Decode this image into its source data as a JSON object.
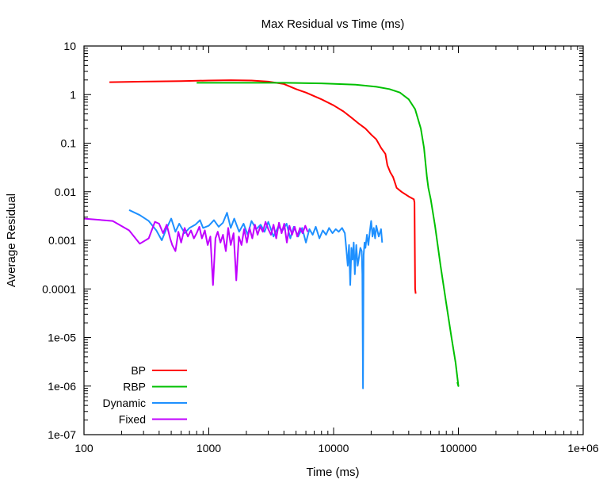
{
  "chart_data": {
    "type": "line",
    "title": "Max Residual vs Time (ms)",
    "xlabel": "Time (ms)",
    "ylabel": "Average Residual",
    "x_scale": "log",
    "y_scale": "log",
    "xlim": [
      100,
      1000000
    ],
    "ylim": [
      1e-07,
      10
    ],
    "x_ticks": [
      100,
      1000,
      10000,
      100000,
      1000000
    ],
    "x_tick_labels": [
      "100",
      "1000",
      "10000",
      "100000",
      "1e+06"
    ],
    "y_ticks": [
      1e-07,
      1e-06,
      1e-05,
      0.0001,
      0.001,
      0.01,
      0.1,
      1,
      10
    ],
    "y_tick_labels": [
      "1e-07",
      "1e-06",
      "1e-05",
      "0.0001",
      "0.001",
      "0.01",
      "0.1",
      "1",
      "10"
    ],
    "grid": false,
    "legend_position": "bottom-left",
    "series": [
      {
        "name": "BP",
        "color": "#ff0000",
        "points": [
          [
            160,
            1.8
          ],
          [
            300,
            1.85
          ],
          [
            600,
            1.9
          ],
          [
            1000,
            1.95
          ],
          [
            1500,
            1.98
          ],
          [
            2200,
            1.95
          ],
          [
            3000,
            1.85
          ],
          [
            4000,
            1.65
          ],
          [
            5000,
            1.3
          ],
          [
            6000,
            1.1
          ],
          [
            8000,
            0.8
          ],
          [
            10000,
            0.6
          ],
          [
            12000,
            0.45
          ],
          [
            14000,
            0.33
          ],
          [
            16000,
            0.25
          ],
          [
            18000,
            0.2
          ],
          [
            20000,
            0.15
          ],
          [
            22000,
            0.12
          ],
          [
            24000,
            0.08
          ],
          [
            26000,
            0.06
          ],
          [
            27000,
            0.035
          ],
          [
            28500,
            0.025
          ],
          [
            30000,
            0.02
          ],
          [
            32000,
            0.012
          ],
          [
            35000,
            0.01
          ],
          [
            40000,
            0.008
          ],
          [
            44000,
            0.007
          ],
          [
            44500,
            0.006
          ],
          [
            45000,
            0.0001
          ],
          [
            45500,
            8e-05
          ]
        ]
      },
      {
        "name": "RBP",
        "color": "#00c000",
        "points": [
          [
            800,
            1.75
          ],
          [
            2000,
            1.75
          ],
          [
            4000,
            1.75
          ],
          [
            8000,
            1.7
          ],
          [
            15000,
            1.6
          ],
          [
            22000,
            1.45
          ],
          [
            28000,
            1.3
          ],
          [
            34000,
            1.1
          ],
          [
            40000,
            0.8
          ],
          [
            45000,
            0.5
          ],
          [
            50000,
            0.2
          ],
          [
            53000,
            0.08
          ],
          [
            56000,
            0.02
          ],
          [
            57500,
            0.012
          ],
          [
            60000,
            0.007
          ],
          [
            65000,
            0.002
          ],
          [
            72000,
            0.0003
          ],
          [
            80000,
            5e-05
          ],
          [
            88000,
            1e-05
          ],
          [
            95000,
            3e-06
          ],
          [
            100000,
            1e-06
          ],
          [
            98000,
            1.2e-06
          ]
        ]
      },
      {
        "name": "Dynamic",
        "color": "#1e90ff",
        "points": [
          [
            230,
            0.0042
          ],
          [
            280,
            0.0033
          ],
          [
            330,
            0.0025
          ],
          [
            380,
            0.0016
          ],
          [
            420,
            0.001
          ],
          [
            460,
            0.0018
          ],
          [
            500,
            0.0028
          ],
          [
            540,
            0.0015
          ],
          [
            580,
            0.0022
          ],
          [
            640,
            0.0014
          ],
          [
            700,
            0.0018
          ],
          [
            780,
            0.0021
          ],
          [
            850,
            0.0026
          ],
          [
            900,
            0.0018
          ],
          [
            1000,
            0.002
          ],
          [
            1100,
            0.0026
          ],
          [
            1200,
            0.0019
          ],
          [
            1300,
            0.0023
          ],
          [
            1400,
            0.0037
          ],
          [
            1500,
            0.0018
          ],
          [
            1600,
            0.0028
          ],
          [
            1750,
            0.0015
          ],
          [
            1900,
            0.0022
          ],
          [
            2050,
            0.0013
          ],
          [
            2200,
            0.0025
          ],
          [
            2400,
            0.0017
          ],
          [
            2600,
            0.0021
          ],
          [
            2800,
            0.0015
          ],
          [
            3000,
            0.0024
          ],
          [
            3300,
            0.0012
          ],
          [
            3600,
            0.0019
          ],
          [
            3900,
            0.0016
          ],
          [
            4200,
            0.0022
          ],
          [
            4500,
            0.0011
          ],
          [
            4800,
            0.0019
          ],
          [
            5200,
            0.0012
          ],
          [
            5600,
            0.0018
          ],
          [
            6000,
            0.0009
          ],
          [
            6400,
            0.0017
          ],
          [
            6800,
            0.0013
          ],
          [
            7200,
            0.0019
          ],
          [
            7700,
            0.0011
          ],
          [
            8200,
            0.0016
          ],
          [
            8700,
            0.0013
          ],
          [
            9200,
            0.0018
          ],
          [
            9800,
            0.0014
          ],
          [
            10400,
            0.0017
          ],
          [
            11000,
            0.0015
          ],
          [
            11700,
            0.0018
          ],
          [
            12300,
            0.0014
          ],
          [
            12700,
            0.0006
          ],
          [
            13000,
            0.0003
          ],
          [
            13300,
            0.0008
          ],
          [
            13600,
            0.00012
          ],
          [
            13900,
            0.0007
          ],
          [
            14200,
            0.0004
          ],
          [
            14500,
            0.0009
          ],
          [
            14800,
            0.0002
          ],
          [
            15200,
            0.0008
          ],
          [
            15600,
            0.0003
          ],
          [
            16000,
            0.00045
          ],
          [
            16400,
            0.0007
          ],
          [
            16800,
            0.0006
          ],
          [
            17000,
            0.0002
          ],
          [
            17200,
            9e-07
          ],
          [
            17400,
            0.0005
          ],
          [
            17700,
            0.0009
          ],
          [
            18000,
            0.0007
          ],
          [
            18500,
            0.0013
          ],
          [
            19000,
            0.0008
          ],
          [
            19500,
            0.0015
          ],
          [
            20000,
            0.0025
          ],
          [
            20500,
            0.0012
          ],
          [
            21000,
            0.0018
          ],
          [
            21500,
            0.0011
          ],
          [
            22000,
            0.002
          ],
          [
            23000,
            0.0012
          ],
          [
            24000,
            0.0017
          ],
          [
            24500,
            0.0009
          ]
        ]
      },
      {
        "name": "Fixed",
        "color": "#c000ff",
        "points": [
          [
            100,
            0.0028
          ],
          [
            170,
            0.0025
          ],
          [
            230,
            0.0016
          ],
          [
            280,
            0.00085
          ],
          [
            330,
            0.0011
          ],
          [
            370,
            0.0024
          ],
          [
            400,
            0.0022
          ],
          [
            430,
            0.0014
          ],
          [
            460,
            0.0021
          ],
          [
            490,
            0.0011
          ],
          [
            510,
            0.0008
          ],
          [
            540,
            0.0006
          ],
          [
            570,
            0.0015
          ],
          [
            600,
            0.0009
          ],
          [
            640,
            0.0018
          ],
          [
            680,
            0.0012
          ],
          [
            720,
            0.0016
          ],
          [
            760,
            0.0011
          ],
          [
            800,
            0.0014
          ],
          [
            840,
            0.0019
          ],
          [
            880,
            0.0011
          ],
          [
            930,
            0.0016
          ],
          [
            980,
            0.0008
          ],
          [
            1030,
            0.0012
          ],
          [
            1080,
            0.00012
          ],
          [
            1130,
            0.0011
          ],
          [
            1180,
            0.0015
          ],
          [
            1240,
            0.0009
          ],
          [
            1300,
            0.0013
          ],
          [
            1370,
            0.0006
          ],
          [
            1430,
            0.0018
          ],
          [
            1500,
            0.0008
          ],
          [
            1580,
            0.0014
          ],
          [
            1660,
            0.00015
          ],
          [
            1740,
            0.0012
          ],
          [
            1830,
            0.0008
          ],
          [
            1920,
            0.0017
          ],
          [
            2020,
            0.0009
          ],
          [
            2120,
            0.0018
          ],
          [
            2230,
            0.0011
          ],
          [
            2340,
            0.0021
          ],
          [
            2460,
            0.0013
          ],
          [
            2580,
            0.0019
          ],
          [
            2710,
            0.0015
          ],
          [
            2850,
            0.0024
          ],
          [
            3000,
            0.0017
          ],
          [
            3150,
            0.0013
          ],
          [
            3300,
            0.0021
          ],
          [
            3470,
            0.0011
          ],
          [
            3650,
            0.0023
          ],
          [
            3830,
            0.0014
          ],
          [
            4020,
            0.0022
          ],
          [
            4220,
            0.0009
          ],
          [
            4430,
            0.002
          ],
          [
            4650,
            0.0013
          ],
          [
            4880,
            0.0019
          ],
          [
            5120,
            0.0012
          ],
          [
            5380,
            0.0018
          ],
          [
            5650,
            0.0014
          ],
          [
            5930,
            0.002
          ],
          [
            6200,
            0.0015
          ]
        ]
      }
    ]
  }
}
